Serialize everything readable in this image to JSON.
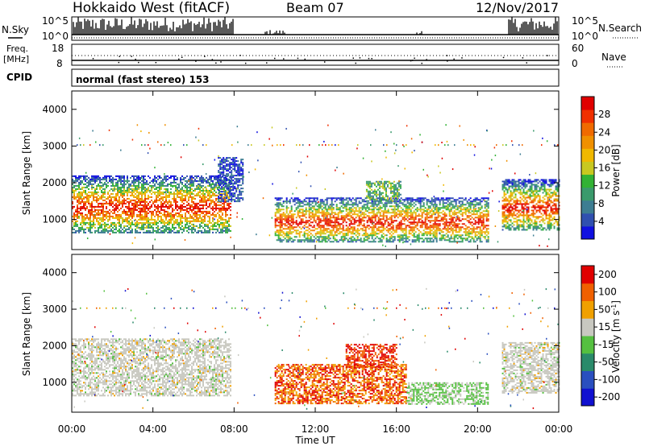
{
  "header": {
    "station": "Hokkaido West (fitACF)",
    "beam": "Beam 07",
    "date": "12/Nov/2017"
  },
  "noise_panel": {
    "left_label": "N.Sky",
    "right_label": "N.Search",
    "left_ticks": [
      "10^5",
      "10^0"
    ],
    "right_ticks": [
      "10^5",
      "10^0"
    ]
  },
  "freq_panel": {
    "left_label_1": "Freq.",
    "left_label_2": "[MHz]",
    "left_ticks": [
      "18",
      "8"
    ],
    "right_label": "Nave",
    "right_ticks": [
      "60",
      "0"
    ]
  },
  "cpid_panel": {
    "label": "CPID",
    "value": "normal (fast stereo) 153"
  },
  "x_axis": {
    "label": "Time UT",
    "ticks": [
      "00:00",
      "04:00",
      "08:00",
      "12:00",
      "16:00",
      "20:00",
      "00:00"
    ]
  },
  "chart_data": [
    {
      "type": "heatmap",
      "name": "power",
      "xlabel": "Time UT",
      "ylabel": "Slant Range [km]",
      "xlim": [
        0,
        24
      ],
      "ylim": [
        180,
        4500
      ],
      "yticks": [
        "1000",
        "2000",
        "3000",
        "4000"
      ],
      "colorbar": {
        "label": "Power [dB]",
        "ticks": [
          "4",
          "8",
          "12",
          "16",
          "20",
          "24",
          "28"
        ],
        "colors": [
          "#1010e0",
          "#3050b0",
          "#3d7d92",
          "#3a9a6c",
          "#32b234",
          "#c8c820",
          "#f0b800",
          "#f09000",
          "#f06a00",
          "#f03000",
          "#e00000"
        ]
      },
      "scatter_regions": [
        {
          "t0": 0.0,
          "t1": 7.8,
          "r0": 650,
          "r1": 2200,
          "level": "high"
        },
        {
          "t0": 10.0,
          "t1": 20.5,
          "r0": 400,
          "r1": 1600,
          "level": "high"
        },
        {
          "t0": 14.5,
          "t1": 16.2,
          "r0": 1500,
          "r1": 2050,
          "level": "mid"
        },
        {
          "t0": 21.2,
          "t1": 24.0,
          "r0": 700,
          "r1": 2100,
          "level": "high"
        },
        {
          "t0": 7.2,
          "t1": 8.4,
          "r0": 1500,
          "r1": 2700,
          "level": "low"
        }
      ]
    },
    {
      "type": "heatmap",
      "name": "velocity",
      "xlabel": "Time UT",
      "ylabel": "Slant Range [km]",
      "xlim": [
        0,
        24
      ],
      "ylim": [
        180,
        4500
      ],
      "yticks": [
        "1000",
        "2000",
        "3000",
        "4000"
      ],
      "colorbar": {
        "label": "Velocity [m s-1]",
        "ticks": [
          "200",
          "100",
          "50",
          "15",
          "-15",
          "-50",
          "-100",
          "-200"
        ],
        "colors": [
          "#1010d0",
          "#2a4fbf",
          "#2a8a6a",
          "#55c040",
          "#c8c8c0",
          "#f0a000",
          "#f06000",
          "#e00000"
        ]
      },
      "scatter_regions": [
        {
          "t0": 0.0,
          "t1": 7.8,
          "r0": 650,
          "r1": 2200,
          "level": "ground"
        },
        {
          "t0": 10.0,
          "t1": 16.5,
          "r0": 400,
          "r1": 1500,
          "level": "away"
        },
        {
          "t0": 13.5,
          "t1": 16.0,
          "r0": 1400,
          "r1": 2050,
          "level": "away-strong"
        },
        {
          "t0": 16.5,
          "t1": 20.5,
          "r0": 400,
          "r1": 1000,
          "level": "toward"
        },
        {
          "t0": 21.2,
          "t1": 24.0,
          "r0": 700,
          "r1": 2100,
          "level": "ground"
        }
      ]
    }
  ]
}
